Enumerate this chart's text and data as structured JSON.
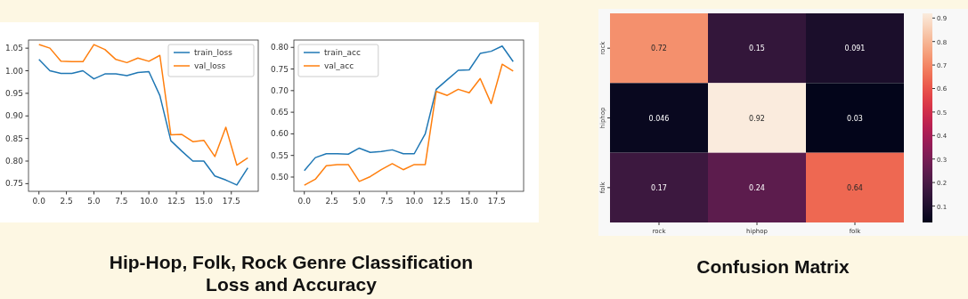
{
  "chart_data": [
    {
      "type": "line",
      "title": "Hip-Hop, Folk, Rock Genre Classification Loss and Accuracy",
      "x": [
        0,
        1,
        2,
        3,
        4,
        5,
        6,
        7,
        8,
        9,
        10,
        11,
        12,
        13,
        14,
        15,
        16,
        17,
        18,
        19
      ],
      "series": [
        {
          "name": "train_loss",
          "color": "#1f77b4",
          "values": [
            1.025,
            1.0,
            0.994,
            0.994,
            1.0,
            0.982,
            0.993,
            0.993,
            0.989,
            0.996,
            0.998,
            0.945,
            0.845,
            0.822,
            0.8,
            0.8,
            0.767,
            0.758,
            0.747,
            0.785
          ]
        },
        {
          "name": "val_loss",
          "color": "#ff7f0e",
          "values": [
            1.058,
            1.05,
            1.021,
            1.02,
            1.02,
            1.058,
            1.047,
            1.025,
            1.018,
            1.028,
            1.021,
            1.034,
            0.858,
            0.859,
            0.843,
            0.846,
            0.81,
            0.875,
            0.791,
            0.807
          ]
        }
      ],
      "xlim": [
        -0.95,
        19.95
      ],
      "xticks": [
        {
          "value": 0,
          "label": "0.0"
        },
        {
          "value": 2.5,
          "label": "2.5"
        },
        {
          "value": 5,
          "label": "5.0"
        },
        {
          "value": 7.5,
          "label": "7.5"
        },
        {
          "value": 10,
          "label": "10.0"
        },
        {
          "value": 12.5,
          "label": "12.5"
        },
        {
          "value": 15,
          "label": "15.0"
        },
        {
          "value": 17.5,
          "label": "17.5"
        }
      ],
      "ylim": [
        0.733,
        1.068
      ],
      "yticks": [
        {
          "value": 0.75,
          "label": "0.75"
        },
        {
          "value": 0.8,
          "label": "0.80"
        },
        {
          "value": 0.85,
          "label": "0.85"
        },
        {
          "value": 0.9,
          "label": "0.90"
        },
        {
          "value": 0.95,
          "label": "0.95"
        },
        {
          "value": 1.0,
          "label": "1.00"
        },
        {
          "value": 1.05,
          "label": "1.05"
        }
      ],
      "legend": "top right",
      "grid": false
    },
    {
      "type": "line",
      "x": [
        0,
        1,
        2,
        3,
        4,
        5,
        6,
        7,
        8,
        9,
        10,
        11,
        12,
        13,
        14,
        15,
        16,
        17,
        18,
        19
      ],
      "series": [
        {
          "name": "train_acc",
          "color": "#1f77b4",
          "values": [
            0.515,
            0.545,
            0.554,
            0.554,
            0.553,
            0.567,
            0.557,
            0.559,
            0.563,
            0.554,
            0.554,
            0.6,
            0.703,
            0.725,
            0.747,
            0.748,
            0.786,
            0.791,
            0.803,
            0.767
          ]
        },
        {
          "name": "val_acc",
          "color": "#ff7f0e",
          "values": [
            0.481,
            0.495,
            0.526,
            0.529,
            0.529,
            0.49,
            0.501,
            0.517,
            0.531,
            0.517,
            0.529,
            0.529,
            0.698,
            0.689,
            0.703,
            0.695,
            0.728,
            0.67,
            0.761,
            0.745
          ]
        }
      ],
      "xlim": [
        -0.95,
        19.95
      ],
      "xticks": [
        {
          "value": 0,
          "label": "0.0"
        },
        {
          "value": 2.5,
          "label": "2.5"
        },
        {
          "value": 5,
          "label": "5.0"
        },
        {
          "value": 7.5,
          "label": "7.5"
        },
        {
          "value": 10,
          "label": "10.0"
        },
        {
          "value": 12.5,
          "label": "12.5"
        },
        {
          "value": 15,
          "label": "15.0"
        },
        {
          "value": 17.5,
          "label": "17.5"
        }
      ],
      "ylim": [
        0.467,
        0.817
      ],
      "yticks": [
        {
          "value": 0.5,
          "label": "0.50"
        },
        {
          "value": 0.55,
          "label": "0.55"
        },
        {
          "value": 0.6,
          "label": "0.60"
        },
        {
          "value": 0.65,
          "label": "0.65"
        },
        {
          "value": 0.7,
          "label": "0.70"
        },
        {
          "value": 0.75,
          "label": "0.75"
        },
        {
          "value": 0.8,
          "label": "0.80"
        }
      ],
      "legend": "top left",
      "grid": false
    },
    {
      "type": "heatmap",
      "title": "Confusion Matrix",
      "categories": [
        "rock",
        "hiphop",
        "folk"
      ],
      "y_categories": [
        "rock",
        "hiphop",
        "folk"
      ],
      "cells": [
        [
          0.72,
          0.15,
          0.091
        ],
        [
          0.046,
          0.92,
          0.03
        ],
        [
          0.17,
          0.24,
          0.64
        ]
      ],
      "data_labels": true,
      "clim": [
        0.03,
        0.92
      ],
      "cticks": [
        0.1,
        0.2,
        0.3,
        0.4,
        0.5,
        0.6,
        0.7,
        0.8,
        0.9
      ]
    }
  ]
}
